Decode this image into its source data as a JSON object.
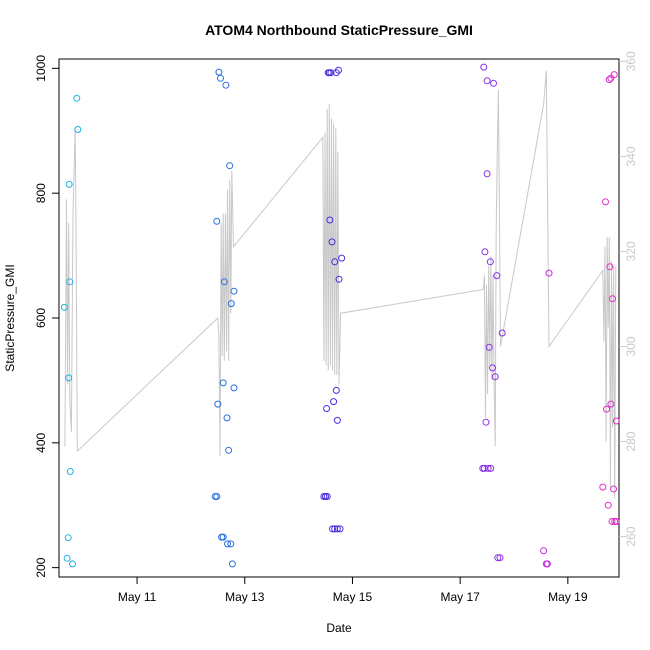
{
  "chart_data": {
    "type": "scatter",
    "title": "ATOM4 Northbound StaticPressure_GMI",
    "xlabel": "Date",
    "ylabel": "StaticPressure_GMI",
    "x_tick_labels": [
      "May 11",
      "May 13",
      "May 15",
      "May 17",
      "May 19"
    ],
    "x_ticks_day": [
      11,
      13,
      15,
      17,
      19
    ],
    "x_range_day": [
      9.55,
      19.95
    ],
    "ylim": [
      185,
      1015
    ],
    "y_ticks": [
      200,
      400,
      600,
      800,
      1000
    ],
    "y_tick_labels": [
      "200",
      "400",
      "600",
      "800",
      "1000"
    ],
    "y2lim": [
      251.5,
      360.5
    ],
    "y2_ticks": [
      260,
      280,
      300,
      320,
      340,
      360
    ],
    "y2_tick_labels": [
      "260",
      "280",
      "300",
      "320",
      "340",
      "360"
    ],
    "line_color": "#c8c8c8",
    "scatter_points": [
      [
        9.65,
        617,
        "#1eb2e8"
      ],
      [
        9.7,
        215,
        "#1eb2e8"
      ],
      [
        9.72,
        248,
        "#1eb2e8"
      ],
      [
        9.73,
        504,
        "#1eb2e8"
      ],
      [
        9.74,
        814,
        "#1eb2e8"
      ],
      [
        9.75,
        658,
        "#1eb2e8"
      ],
      [
        9.76,
        354,
        "#1eb2e8"
      ],
      [
        9.8,
        206,
        "#1eb2e8"
      ],
      [
        9.88,
        952,
        "#1eb2e8"
      ],
      [
        9.9,
        902,
        "#1eb2e8"
      ],
      [
        12.45,
        314,
        "#2a6fe0"
      ],
      [
        12.48,
        314,
        "#2a6fe0"
      ],
      [
        12.48,
        755,
        "#2a6fe0"
      ],
      [
        12.5,
        462,
        "#2a6fe0"
      ],
      [
        12.52,
        994,
        "#2a6fe0"
      ],
      [
        12.55,
        984,
        "#2a6fe0"
      ],
      [
        12.57,
        249,
        "#2a6fe0"
      ],
      [
        12.6,
        249,
        "#2a6fe0"
      ],
      [
        12.6,
        496,
        "#2a6fe0"
      ],
      [
        12.62,
        658,
        "#2a6fe0"
      ],
      [
        12.65,
        973,
        "#2a6fe0"
      ],
      [
        12.67,
        440,
        "#2a6fe0"
      ],
      [
        12.68,
        238,
        "#2a6fe0"
      ],
      [
        12.7,
        388,
        "#2a6fe0"
      ],
      [
        12.72,
        844,
        "#2a6fe0"
      ],
      [
        12.74,
        238,
        "#2a6fe0"
      ],
      [
        12.75,
        623,
        "#2a6fe0"
      ],
      [
        12.77,
        206,
        "#2a6fe0"
      ],
      [
        12.8,
        643,
        "#2a6fe0"
      ],
      [
        12.8,
        488,
        "#2a6fe0"
      ],
      [
        14.47,
        314,
        "#4a2ee0"
      ],
      [
        14.5,
        314,
        "#4a2ee0"
      ],
      [
        14.52,
        455,
        "#4a2ee0"
      ],
      [
        14.53,
        314,
        "#4a2ee0"
      ],
      [
        14.55,
        993,
        "#4a2ee0"
      ],
      [
        14.57,
        993,
        "#4a2ee0"
      ],
      [
        14.58,
        757,
        "#4a2ee0"
      ],
      [
        14.6,
        993,
        "#4a2ee0"
      ],
      [
        14.62,
        722,
        "#4a2ee0"
      ],
      [
        14.63,
        262,
        "#4a2ee0"
      ],
      [
        14.65,
        466,
        "#4a2ee0"
      ],
      [
        14.67,
        262,
        "#4a2ee0"
      ],
      [
        14.67,
        690,
        "#4a2ee0"
      ],
      [
        14.7,
        484,
        "#4a2ee0"
      ],
      [
        14.7,
        993,
        "#4a2ee0"
      ],
      [
        14.72,
        262,
        "#4a2ee0"
      ],
      [
        14.72,
        436,
        "#4a2ee0"
      ],
      [
        14.74,
        997,
        "#4a2ee0"
      ],
      [
        14.75,
        662,
        "#4a2ee0"
      ],
      [
        14.77,
        262,
        "#4a2ee0"
      ],
      [
        14.8,
        696,
        "#4a2ee0"
      ],
      [
        17.42,
        359,
        "#8a2ee8"
      ],
      [
        17.44,
        1002,
        "#8a2ee8"
      ],
      [
        17.45,
        359,
        "#8a2ee8"
      ],
      [
        17.46,
        706,
        "#8a2ee8"
      ],
      [
        17.48,
        433,
        "#8a2ee8"
      ],
      [
        17.5,
        831,
        "#8a2ee8"
      ],
      [
        17.5,
        980,
        "#8a2ee8"
      ],
      [
        17.52,
        359,
        "#8a2ee8"
      ],
      [
        17.54,
        553,
        "#8a2ee8"
      ],
      [
        17.56,
        690,
        "#8a2ee8"
      ],
      [
        17.57,
        359,
        "#8a2ee8"
      ],
      [
        17.6,
        520,
        "#8a2ee8"
      ],
      [
        17.62,
        976,
        "#8a2ee8"
      ],
      [
        17.65,
        506,
        "#8a2ee8"
      ],
      [
        17.68,
        668,
        "#8a2ee8"
      ],
      [
        17.7,
        216,
        "#8a2ee8"
      ],
      [
        17.74,
        216,
        "#8a2ee8"
      ],
      [
        17.78,
        576,
        "#8a2ee8"
      ],
      [
        18.55,
        227,
        "#c02ee0"
      ],
      [
        18.6,
        206,
        "#c02ee0"
      ],
      [
        18.62,
        206,
        "#c02ee0"
      ],
      [
        18.65,
        672,
        "#c02ee0"
      ],
      [
        19.65,
        329,
        "#e22ec8"
      ],
      [
        19.7,
        786,
        "#e22ec8"
      ],
      [
        19.72,
        454,
        "#e22ec8"
      ],
      [
        19.75,
        300,
        "#e22ec8"
      ],
      [
        19.77,
        982,
        "#e22ec8"
      ],
      [
        19.78,
        682,
        "#e22ec8"
      ],
      [
        19.8,
        984,
        "#e22ec8"
      ],
      [
        19.8,
        462,
        "#e22ec8"
      ],
      [
        19.82,
        274,
        "#e22ec8"
      ],
      [
        19.83,
        631,
        "#e22ec8"
      ],
      [
        19.85,
        326,
        "#e22ec8"
      ],
      [
        19.86,
        990,
        "#e22ec8"
      ],
      [
        19.87,
        274,
        "#e22ec8"
      ],
      [
        19.9,
        274,
        "#e22ec8"
      ],
      [
        19.9,
        435,
        "#e22ec8"
      ]
    ],
    "line_series": [
      [
        9.66,
        279
      ],
      [
        9.69,
        331
      ],
      [
        9.71,
        292
      ],
      [
        9.73,
        326
      ],
      [
        9.75,
        289
      ],
      [
        9.78,
        282
      ],
      [
        9.81,
        328
      ],
      [
        9.85,
        346
      ],
      [
        9.87,
        319
      ],
      [
        9.89,
        278
      ],
      [
        12.5,
        306
      ],
      [
        12.52,
        302
      ],
      [
        12.54,
        277
      ],
      [
        12.56,
        326
      ],
      [
        12.58,
        298
      ],
      [
        12.6,
        328
      ],
      [
        12.62,
        297
      ],
      [
        12.64,
        328
      ],
      [
        12.66,
        299
      ],
      [
        12.68,
        333
      ],
      [
        12.7,
        297
      ],
      [
        12.72,
        335
      ],
      [
        12.74,
        307
      ],
      [
        12.76,
        337
      ],
      [
        12.79,
        321
      ],
      [
        14.45,
        344
      ],
      [
        14.47,
        297
      ],
      [
        14.49,
        345
      ],
      [
        14.51,
        296
      ],
      [
        14.53,
        350
      ],
      [
        14.55,
        295
      ],
      [
        14.57,
        351
      ],
      [
        14.59,
        296
      ],
      [
        14.61,
        348
      ],
      [
        14.63,
        295
      ],
      [
        14.65,
        347
      ],
      [
        14.67,
        294
      ],
      [
        14.69,
        346
      ],
      [
        14.71,
        294
      ],
      [
        14.73,
        341
      ],
      [
        14.75,
        292
      ],
      [
        14.78,
        307
      ],
      [
        17.43,
        312
      ],
      [
        17.45,
        315
      ],
      [
        17.47,
        285
      ],
      [
        17.49,
        313
      ],
      [
        17.51,
        290
      ],
      [
        17.53,
        317
      ],
      [
        17.55,
        296
      ],
      [
        17.57,
        319
      ],
      [
        17.59,
        293
      ],
      [
        17.61,
        315
      ],
      [
        17.63,
        292
      ],
      [
        17.65,
        279
      ],
      [
        17.67,
        325
      ],
      [
        17.69,
        341
      ],
      [
        17.71,
        354
      ],
      [
        17.75,
        300
      ],
      [
        18.55,
        351
      ],
      [
        18.6,
        358
      ],
      [
        18.65,
        300
      ],
      [
        19.65,
        316
      ],
      [
        19.67,
        301
      ],
      [
        19.69,
        321
      ],
      [
        19.71,
        280
      ],
      [
        19.73,
        323
      ],
      [
        19.75,
        304
      ],
      [
        19.77,
        323
      ],
      [
        19.79,
        270
      ],
      [
        19.81,
        318
      ],
      [
        19.83,
        283
      ],
      [
        19.85,
        317
      ],
      [
        19.87,
        268
      ],
      [
        19.89,
        317
      ]
    ]
  }
}
